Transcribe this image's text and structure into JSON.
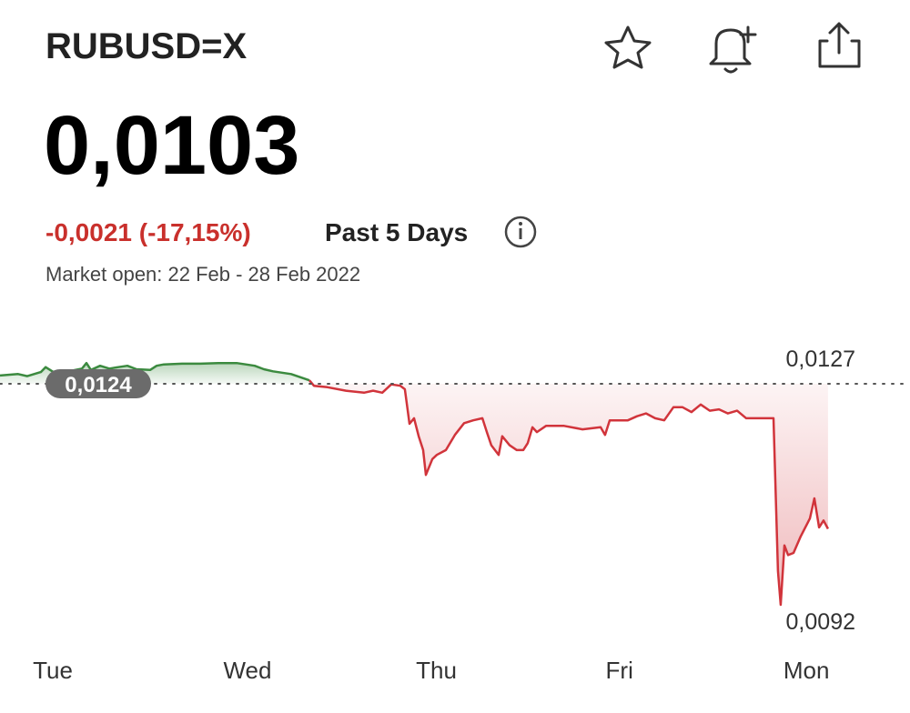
{
  "header": {
    "title": "RUBUSD=X",
    "price": "0,0103",
    "change": "-0,0021 (-17,15%)",
    "period": "Past 5 Days",
    "market_status": "Market open: 22 Feb - 28 Feb 2022"
  },
  "chart_data": {
    "type": "line",
    "x": [
      -0.271,
      -0.178,
      -0.131,
      -0.061,
      -0.037,
      0.009,
      0.079,
      0.15,
      0.173,
      0.196,
      0.243,
      0.29,
      0.336,
      0.383,
      0.43,
      0.5,
      0.533,
      0.57,
      0.664,
      0.757,
      0.85,
      0.944,
      0.991,
      1.037,
      1.084,
      1.131,
      1.224,
      1.318,
      1.341,
      1.411,
      1.505,
      1.598,
      1.645,
      1.692,
      1.738,
      1.785,
      1.808,
      1.832,
      1.855,
      1.879,
      1.902,
      1.916,
      1.949,
      1.972,
      2.019,
      2.065,
      2.112,
      2.159,
      2.206,
      2.229,
      2.252,
      2.29,
      2.308,
      2.346,
      2.383,
      2.416,
      2.439,
      2.463,
      2.486,
      2.533,
      2.626,
      2.72,
      2.813,
      2.836,
      2.86,
      2.953,
      3.0,
      3.047,
      3.093,
      3.14,
      3.187,
      3.234,
      3.28,
      3.327,
      3.374,
      3.421,
      3.467,
      3.514,
      3.561,
      3.701,
      3.724,
      3.738,
      3.757,
      3.776,
      3.804,
      3.841,
      3.888,
      3.911,
      3.935,
      3.958,
      3.981
    ],
    "values": [
      0.01252,
      0.01254,
      0.01251,
      0.01257,
      0.01264,
      0.01256,
      0.01258,
      0.01262,
      0.0127,
      0.0126,
      0.01266,
      0.01262,
      0.01264,
      0.01266,
      0.01261,
      0.0126,
      0.01266,
      0.01268,
      0.01269,
      0.01269,
      0.0127,
      0.0127,
      0.01268,
      0.01266,
      0.01261,
      0.01258,
      0.01254,
      0.01245,
      0.01237,
      0.01235,
      0.0123,
      0.01227,
      0.0123,
      0.01227,
      0.01239,
      0.01237,
      0.01232,
      0.01182,
      0.0119,
      0.01164,
      0.01144,
      0.01108,
      0.01131,
      0.01137,
      0.01144,
      0.01166,
      0.01183,
      0.01187,
      0.0119,
      0.0117,
      0.01151,
      0.01137,
      0.01164,
      0.01151,
      0.01144,
      0.01144,
      0.01154,
      0.01177,
      0.0117,
      0.01179,
      0.01179,
      0.01174,
      0.01177,
      0.01166,
      0.01187,
      0.01187,
      0.01193,
      0.01197,
      0.0119,
      0.01187,
      0.01206,
      0.01206,
      0.01199,
      0.0121,
      0.01201,
      0.01203,
      0.01197,
      0.01201,
      0.0119,
      0.0119,
      0.00969,
      0.0092,
      0.01006,
      0.00992,
      0.00995,
      0.01019,
      0.01045,
      0.01074,
      0.01032,
      0.01042,
      0.0103
    ],
    "up_color": "#3b8a3f",
    "down_color": "#d1343b",
    "xlim": [
      -0.271,
      4.402
    ],
    "ylim": [
      0.0091,
      0.013
    ],
    "xticks": [
      {
        "value": 0,
        "label": "Tue"
      },
      {
        "value": 1.0,
        "label": "Wed"
      },
      {
        "value": 1.97,
        "label": "Thu"
      },
      {
        "value": 2.91,
        "label": "Fri"
      },
      {
        "value": 3.87,
        "label": "Mon"
      }
    ],
    "reference": {
      "value": 0.0124,
      "label": "0,0124"
    },
    "high": {
      "value": 0.0127,
      "label": "0,0127"
    },
    "low": {
      "value": 0.0092,
      "label": "0,0092"
    }
  }
}
